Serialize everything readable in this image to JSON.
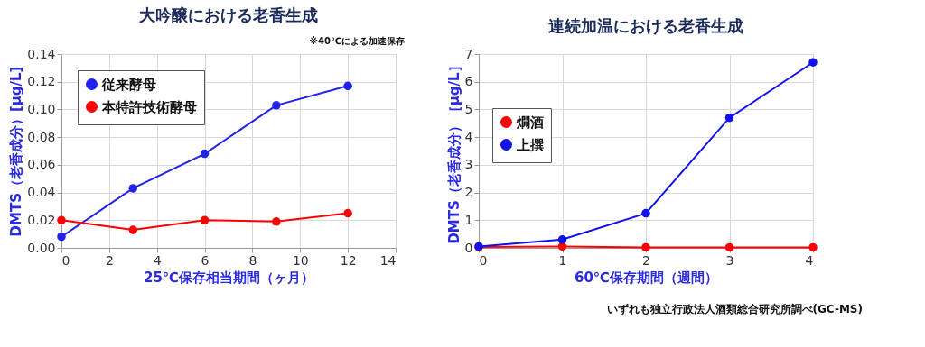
{
  "chart_data": [
    {
      "type": "line",
      "title": "大吟醸における老香生成",
      "xlabel": "25℃保存相当期間（ヶ月）",
      "ylabel": "DMTS（老香成分）[μg/L]",
      "x": [
        0,
        3,
        6,
        9,
        12
      ],
      "series": [
        {
          "name": "従来酵母",
          "color": "#2222ee",
          "values": [
            0.008,
            0.043,
            0.068,
            0.103,
            0.117
          ]
        },
        {
          "name": "本特許技術酵母",
          "color": "#ff0000",
          "values": [
            0.02,
            0.013,
            0.02,
            0.019,
            0.025
          ]
        }
      ],
      "xlim": [
        0,
        14
      ],
      "xticks": [
        0,
        2,
        4,
        6,
        8,
        10,
        12,
        14
      ],
      "ylim": [
        0,
        0.14
      ],
      "yticks": [
        {
          "value": 0,
          "label": "0.00"
        },
        {
          "value": 0.02,
          "label": "0.02"
        },
        {
          "value": 0.04,
          "label": "0.04"
        },
        {
          "value": 0.06,
          "label": "0.06"
        },
        {
          "value": 0.08,
          "label": "0.08"
        },
        {
          "value": 0.1,
          "label": "0.10"
        },
        {
          "value": 0.12,
          "label": "0.12"
        },
        {
          "value": 0.14,
          "label": "0.14"
        }
      ],
      "grid": true,
      "legend": "top left",
      "marker": "circle",
      "annotations": [
        "※40℃による加速保存"
      ]
    },
    {
      "type": "line",
      "title": "連続加温における老香生成",
      "xlabel": "60℃保存期間（週間）",
      "ylabel": "DMTS（老香成分）［μg/L］",
      "x": [
        0,
        1,
        2,
        3,
        4
      ],
      "series": [
        {
          "name": "燗酒",
          "color": "#ff0000",
          "values": [
            0.03,
            0.05,
            0.02,
            0.02,
            0.02
          ]
        },
        {
          "name": "上撰",
          "color": "#1111ee",
          "values": [
            0.05,
            0.3,
            1.25,
            4.7,
            6.7
          ]
        }
      ],
      "xlim": [
        0,
        4
      ],
      "xticks": [
        0,
        1,
        2,
        3,
        4
      ],
      "ylim": [
        0,
        7
      ],
      "yticks": [
        0,
        1,
        2,
        3,
        4,
        5,
        6,
        7
      ],
      "grid": true,
      "legend": "left",
      "marker": "circle",
      "annotations": [
        "いずれも独立行政法人酒類総合研究所調べ(GC-MS)"
      ]
    }
  ]
}
